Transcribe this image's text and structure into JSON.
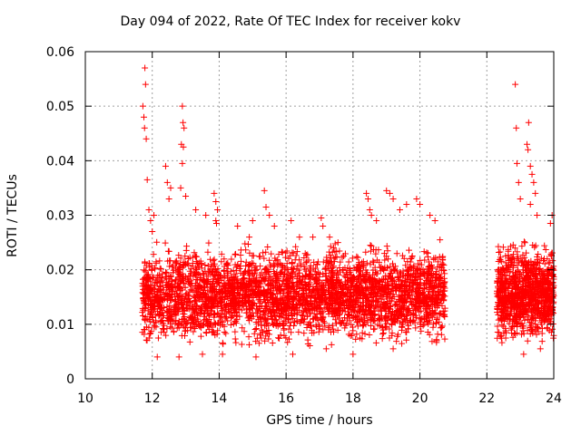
{
  "chart_data": {
    "type": "scatter",
    "title": "Day 094 of 2022, Rate Of TEC Index for receiver kokv",
    "xlabel": "GPS time / hours",
    "ylabel": "ROTI / TECUs",
    "xlim": [
      10,
      24
    ],
    "ylim": [
      0,
      0.06
    ],
    "xticks": [
      10,
      12,
      14,
      16,
      18,
      20,
      22,
      24
    ],
    "yticks": [
      0,
      0.01,
      0.02,
      0.03,
      0.04,
      0.05,
      0.06
    ],
    "xtick_labels": [
      "10",
      "12",
      "14",
      "16",
      "18",
      "20",
      "22",
      "24"
    ],
    "ytick_labels": [
      "0",
      "0.01",
      "0.02",
      "0.03",
      "0.04",
      "0.05",
      "0.06"
    ],
    "grid": true,
    "marker": "+",
    "color": "#ff0000",
    "series": [
      {
        "name": "ROTI",
        "points": [
          [
            11.78,
            0.057
          ],
          [
            11.8,
            0.054
          ],
          [
            11.72,
            0.05
          ],
          [
            11.75,
            0.048
          ],
          [
            11.77,
            0.046
          ],
          [
            11.82,
            0.044
          ],
          [
            11.85,
            0.0365
          ],
          [
            11.9,
            0.031
          ],
          [
            11.95,
            0.029
          ],
          [
            12.05,
            0.03
          ],
          [
            12.0,
            0.027
          ],
          [
            12.4,
            0.039
          ],
          [
            12.45,
            0.036
          ],
          [
            12.55,
            0.035
          ],
          [
            12.5,
            0.033
          ],
          [
            12.9,
            0.05
          ],
          [
            12.92,
            0.047
          ],
          [
            12.95,
            0.046
          ],
          [
            12.87,
            0.043
          ],
          [
            12.93,
            0.0425
          ],
          [
            12.9,
            0.0395
          ],
          [
            12.85,
            0.035
          ],
          [
            13.0,
            0.0335
          ],
          [
            13.3,
            0.031
          ],
          [
            13.6,
            0.03
          ],
          [
            13.85,
            0.034
          ],
          [
            13.9,
            0.0325
          ],
          [
            13.95,
            0.031
          ],
          [
            13.9,
            0.029
          ],
          [
            13.92,
            0.0285
          ],
          [
            14.55,
            0.028
          ],
          [
            14.9,
            0.026
          ],
          [
            15.0,
            0.029
          ],
          [
            15.35,
            0.0345
          ],
          [
            15.4,
            0.0315
          ],
          [
            15.5,
            0.03
          ],
          [
            15.65,
            0.028
          ],
          [
            16.15,
            0.029
          ],
          [
            16.4,
            0.026
          ],
          [
            16.8,
            0.026
          ],
          [
            17.05,
            0.0295
          ],
          [
            17.1,
            0.028
          ],
          [
            17.3,
            0.026
          ],
          [
            17.55,
            0.025
          ],
          [
            18.4,
            0.034
          ],
          [
            18.45,
            0.033
          ],
          [
            18.5,
            0.031
          ],
          [
            18.55,
            0.03
          ],
          [
            18.7,
            0.029
          ],
          [
            19.0,
            0.0345
          ],
          [
            19.1,
            0.034
          ],
          [
            19.2,
            0.033
          ],
          [
            19.4,
            0.031
          ],
          [
            19.6,
            0.032
          ],
          [
            19.9,
            0.033
          ],
          [
            20.0,
            0.032
          ],
          [
            20.3,
            0.03
          ],
          [
            20.45,
            0.029
          ],
          [
            20.6,
            0.0255
          ],
          [
            22.65,
            0.02
          ],
          [
            22.7,
            0.022
          ],
          [
            22.85,
            0.054
          ],
          [
            22.88,
            0.046
          ],
          [
            23.25,
            0.047
          ],
          [
            23.2,
            0.043
          ],
          [
            23.23,
            0.042
          ],
          [
            23.3,
            0.039
          ],
          [
            23.35,
            0.0375
          ],
          [
            23.4,
            0.036
          ],
          [
            23.45,
            0.034
          ],
          [
            23.3,
            0.032
          ],
          [
            22.9,
            0.0395
          ],
          [
            22.95,
            0.036
          ],
          [
            23.0,
            0.033
          ],
          [
            23.5,
            0.03
          ],
          [
            23.95,
            0.03
          ],
          [
            23.9,
            0.0285
          ],
          [
            12.15,
            0.004
          ],
          [
            12.8,
            0.004
          ],
          [
            13.5,
            0.0045
          ],
          [
            14.1,
            0.0045
          ],
          [
            15.1,
            0.004
          ],
          [
            16.2,
            0.0045
          ],
          [
            17.2,
            0.0055
          ],
          [
            18.0,
            0.0045
          ],
          [
            19.2,
            0.0055
          ],
          [
            20.5,
            0.007
          ],
          [
            23.1,
            0.0045
          ],
          [
            23.6,
            0.0055
          ]
        ]
      }
    ],
    "density_bands": [
      {
        "x_range": [
          11.7,
          20.75
        ],
        "y_low": 0.005,
        "y_high": 0.026,
        "count": 3400
      },
      {
        "x_range": [
          22.3,
          24.0
        ],
        "y_low": 0.005,
        "y_high": 0.026,
        "count": 1000
      }
    ]
  }
}
